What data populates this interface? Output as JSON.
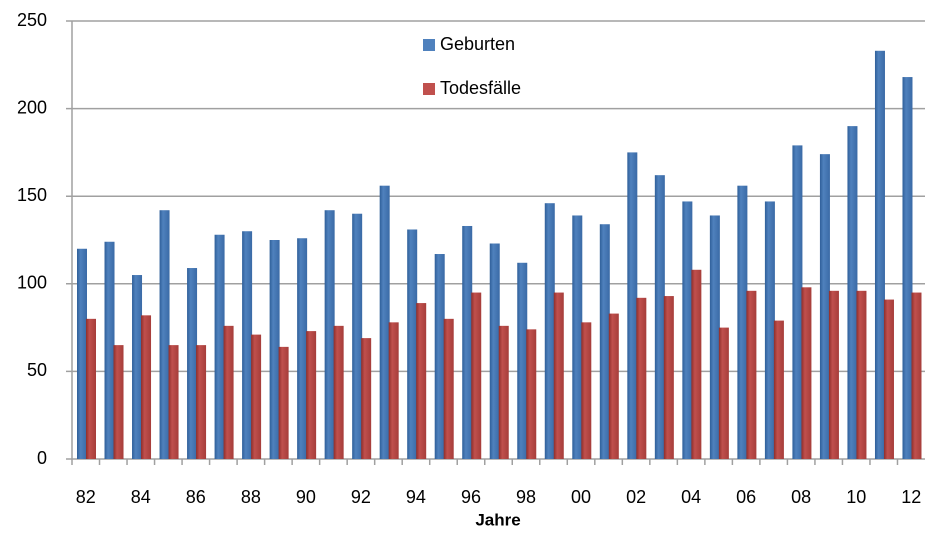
{
  "chart_data": {
    "type": "bar",
    "x_label": "Jahre",
    "categories": [
      "82",
      null,
      "84",
      null,
      "86",
      null,
      "88",
      null,
      "90",
      null,
      "92",
      null,
      "94",
      null,
      "96",
      null,
      "98",
      null,
      "00",
      null,
      "02",
      null,
      "04",
      null,
      "06",
      null,
      "08",
      null,
      "10",
      null,
      "12"
    ],
    "series": [
      {
        "name": "Geburten",
        "color": "#4f81bd",
        "values": [
          120,
          124,
          105,
          142,
          109,
          128,
          130,
          125,
          126,
          142,
          140,
          156,
          131,
          117,
          133,
          123,
          112,
          146,
          139,
          134,
          175,
          162,
          147,
          139,
          156,
          147,
          179,
          174,
          190,
          233,
          218
        ]
      },
      {
        "name": "Todesfälle",
        "color": "#c0504d",
        "values": [
          80,
          65,
          82,
          65,
          65,
          76,
          71,
          64,
          73,
          76,
          69,
          78,
          89,
          80,
          95,
          76,
          74,
          95,
          78,
          83,
          92,
          93,
          108,
          75,
          96,
          79,
          98,
          96,
          96,
          91,
          95
        ]
      }
    ],
    "ylim": [
      0,
      250
    ],
    "yticks": [
      0,
      50,
      100,
      150,
      200,
      250
    ],
    "grid": true,
    "legend": "top"
  }
}
